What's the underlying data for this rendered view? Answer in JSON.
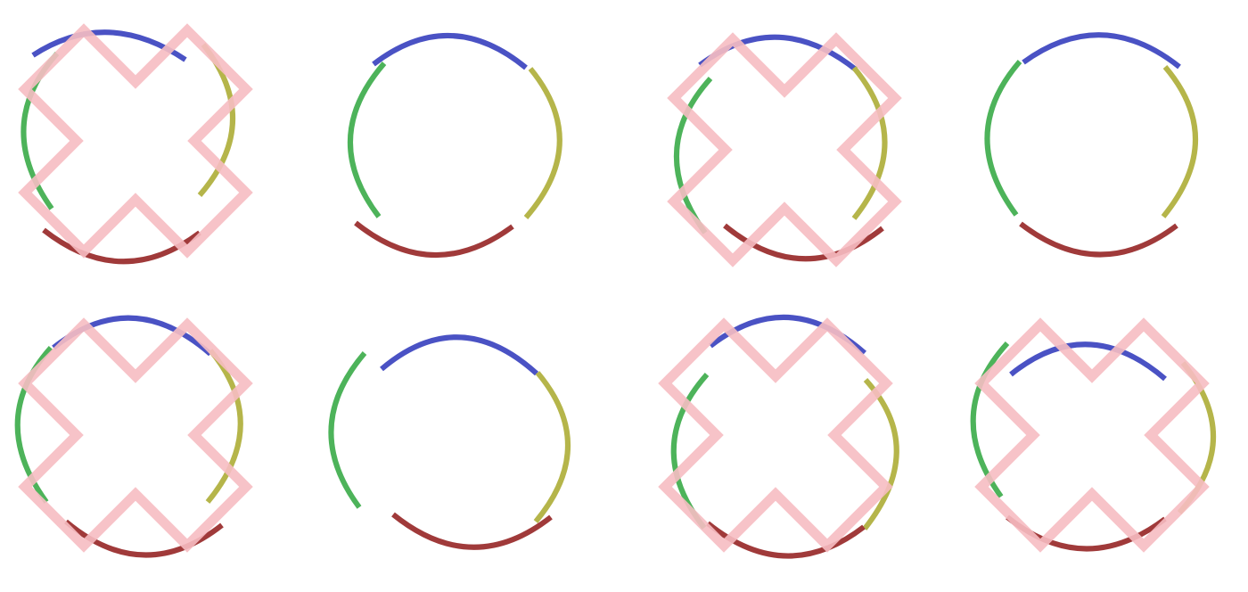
{
  "colors": {
    "background": "#ffffff",
    "top_arc": "#4a52c4",
    "right_arc": "#b5b54a",
    "bottom_arc": "#a03a3a",
    "left_arc": "#4db35a",
    "cross_outline": "#f6bcc2"
  },
  "panels": [
    {
      "id": "panel-1",
      "row": 1,
      "col": 1,
      "has_cross": true
    },
    {
      "id": "panel-2",
      "row": 1,
      "col": 2,
      "has_cross": false
    },
    {
      "id": "panel-3",
      "row": 1,
      "col": 3,
      "has_cross": true
    },
    {
      "id": "panel-4",
      "row": 1,
      "col": 4,
      "has_cross": false
    },
    {
      "id": "panel-5",
      "row": 2,
      "col": 1,
      "has_cross": true
    },
    {
      "id": "panel-6",
      "row": 2,
      "col": 2,
      "has_cross": false
    },
    {
      "id": "panel-7",
      "row": 2,
      "col": 3,
      "has_cross": true
    },
    {
      "id": "panel-8",
      "row": 2,
      "col": 4,
      "has_cross": true
    }
  ]
}
